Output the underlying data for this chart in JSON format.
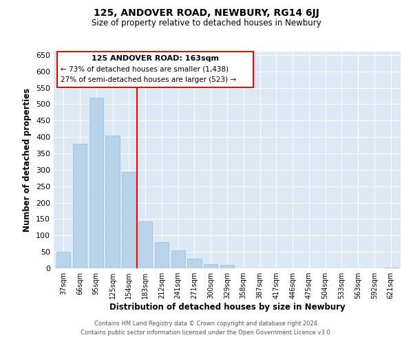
{
  "title": "125, ANDOVER ROAD, NEWBURY, RG14 6JJ",
  "subtitle": "Size of property relative to detached houses in Newbury",
  "xlabel": "Distribution of detached houses by size in Newbury",
  "ylabel": "Number of detached properties",
  "categories": [
    "37sqm",
    "66sqm",
    "95sqm",
    "125sqm",
    "154sqm",
    "183sqm",
    "212sqm",
    "241sqm",
    "271sqm",
    "300sqm",
    "329sqm",
    "358sqm",
    "387sqm",
    "417sqm",
    "446sqm",
    "475sqm",
    "504sqm",
    "533sqm",
    "563sqm",
    "592sqm",
    "621sqm"
  ],
  "values": [
    50,
    380,
    520,
    405,
    293,
    143,
    80,
    55,
    30,
    13,
    10,
    0,
    0,
    0,
    0,
    0,
    0,
    0,
    0,
    0,
    3
  ],
  "bar_color": "#b8d4ea",
  "bar_edge_color": "#9ab8d4",
  "ylim": [
    0,
    660
  ],
  "yticks": [
    0,
    50,
    100,
    150,
    200,
    250,
    300,
    350,
    400,
    450,
    500,
    550,
    600,
    650
  ],
  "annotation_title": "125 ANDOVER ROAD: 163sqm",
  "annotation_line1": "← 73% of detached houses are smaller (1,438)",
  "annotation_line2": "27% of semi-detached houses are larger (523) →",
  "footer_line1": "Contains HM Land Registry data © Crown copyright and database right 2024.",
  "footer_line2": "Contains public sector information licensed under the Open Government Licence v3.0.",
  "background_color": "#ffffff",
  "plot_bg_color": "#dce9f5",
  "grid_color": "#ffffff"
}
